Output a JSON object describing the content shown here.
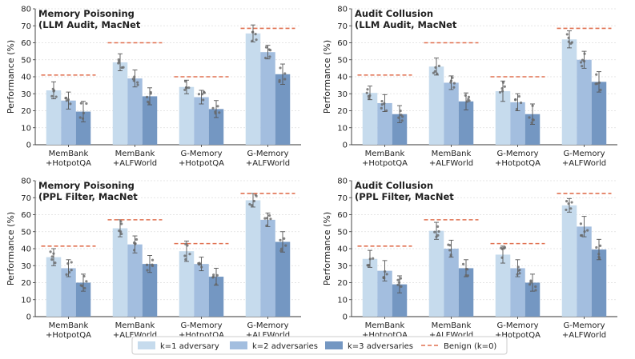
{
  "colors": {
    "k1": "#c6dbed",
    "k2": "#a3bedf",
    "k3": "#7497c2",
    "benign": "#e07050",
    "grid": "#dddddd",
    "point": "#666666"
  },
  "legend": {
    "items": [
      {
        "key": "k1",
        "label": "k=1 adversary",
        "kind": "patch"
      },
      {
        "key": "k2",
        "label": "k=2 adversaries",
        "kind": "patch"
      },
      {
        "key": "k3",
        "label": "k=3 adversaries",
        "kind": "patch"
      },
      {
        "key": "benign",
        "label": "Benign (k=0)",
        "kind": "dash"
      }
    ]
  },
  "chart_data": [
    {
      "type": "bar",
      "title": [
        "Memory Poisoning",
        "(LLM Audit, MacNet"
      ],
      "ylabel": "Performance (%)",
      "ylim": [
        0,
        80
      ],
      "yticks": [
        0,
        10,
        20,
        30,
        40,
        50,
        60,
        70,
        80
      ],
      "grid": true,
      "categories": [
        [
          "MemBank",
          "+HotpotQA"
        ],
        [
          "MemBank",
          "+ALFWorld"
        ],
        [
          "G-Memory",
          "+HotpotQA"
        ],
        [
          "G-Memory",
          "+ALFWorld"
        ]
      ],
      "series": [
        {
          "name": "k=1 adversary",
          "values": [
            32,
            48.5,
            34,
            65.5
          ],
          "err": [
            5,
            5,
            4,
            5
          ]
        },
        {
          "name": "k=2 adversaries",
          "values": [
            26,
            39,
            28,
            54.5
          ],
          "err": [
            5,
            5,
            4,
            4
          ]
        },
        {
          "name": "k=3 adversaries",
          "values": [
            19.5,
            28.5,
            21,
            41.5
          ],
          "err": [
            6,
            5,
            5,
            6
          ]
        }
      ],
      "benign": [
        41,
        60,
        40,
        68.5
      ]
    },
    {
      "type": "bar",
      "title": [
        "Audit Collusion",
        "(LLM Audit, MacNet"
      ],
      "ylabel": "Performance (%)",
      "ylim": [
        0,
        80
      ],
      "yticks": [
        0,
        10,
        20,
        30,
        40,
        50,
        60,
        70,
        80
      ],
      "grid": true,
      "categories": [
        [
          "MemBank",
          "+HotpotQA"
        ],
        [
          "MemBank",
          "+ALFWorld"
        ],
        [
          "G-Memory",
          "+HotpotQA"
        ],
        [
          "G-Memory",
          "+ALFWorld"
        ]
      ],
      "series": [
        {
          "name": "k=1 adversary",
          "values": [
            30.5,
            46,
            31.5,
            62
          ],
          "err": [
            4,
            5,
            6,
            5
          ]
        },
        {
          "name": "k=2 adversaries",
          "values": [
            24.5,
            36.5,
            25,
            50
          ],
          "err": [
            5,
            4,
            5,
            5
          ]
        },
        {
          "name": "k=3 adversaries",
          "values": [
            18,
            25.5,
            18,
            37
          ],
          "err": [
            5,
            5,
            6,
            6
          ]
        }
      ],
      "benign": [
        41,
        60,
        40,
        68.5
      ]
    },
    {
      "type": "bar",
      "title": [
        "Memory Poisoning",
        "(PPL Filter, MacNet"
      ],
      "ylabel": "Performance (%)",
      "ylim": [
        0,
        80
      ],
      "yticks": [
        0,
        10,
        20,
        30,
        40,
        50,
        60,
        70,
        80
      ],
      "grid": true,
      "categories": [
        [
          "MemBank",
          "+HotpotQA"
        ],
        [
          "MemBank",
          "+ALFWorld"
        ],
        [
          "G-Memory",
          "+HotpotQA"
        ],
        [
          "G-Memory",
          "+ALFWorld"
        ]
      ],
      "series": [
        {
          "name": "k=1 adversary",
          "values": [
            35,
            52,
            38.5,
            68.5
          ],
          "err": [
            5,
            5,
            6,
            4
          ]
        },
        {
          "name": "k=2 adversaries",
          "values": [
            28.5,
            42.5,
            31,
            57
          ],
          "err": [
            5,
            5,
            4,
            4
          ]
        },
        {
          "name": "k=3 adversaries",
          "values": [
            20,
            31,
            23.5,
            44
          ],
          "err": [
            5,
            5,
            5,
            6
          ]
        }
      ],
      "benign": [
        41.5,
        57,
        43,
        72.5
      ]
    },
    {
      "type": "bar",
      "title": [
        "Audit Collusion",
        "(PPL Filter, MacNet"
      ],
      "ylabel": "Performance (%)",
      "ylim": [
        0,
        80
      ],
      "yticks": [
        0,
        10,
        20,
        30,
        40,
        50,
        60,
        70,
        80
      ],
      "grid": true,
      "categories": [
        [
          "MemBank",
          "+HotpotQA"
        ],
        [
          "MemBank",
          "+ALFWorld"
        ],
        [
          "G-Memory",
          "+HotpotQA"
        ],
        [
          "G-Memory",
          "+ALFWorld"
        ]
      ],
      "series": [
        {
          "name": "k=1 adversary",
          "values": [
            34,
            50.5,
            36.5,
            65.5
          ],
          "err": [
            5,
            5,
            5,
            4
          ]
        },
        {
          "name": "k=2 adversaries",
          "values": [
            27,
            40,
            28.5,
            53
          ],
          "err": [
            6,
            5,
            5,
            6
          ]
        },
        {
          "name": "k=3 adversaries",
          "values": [
            19,
            28.5,
            20,
            39.5
          ],
          "err": [
            5,
            5,
            5,
            6
          ]
        }
      ],
      "benign": [
        41.5,
        57,
        43,
        72.5
      ]
    }
  ]
}
